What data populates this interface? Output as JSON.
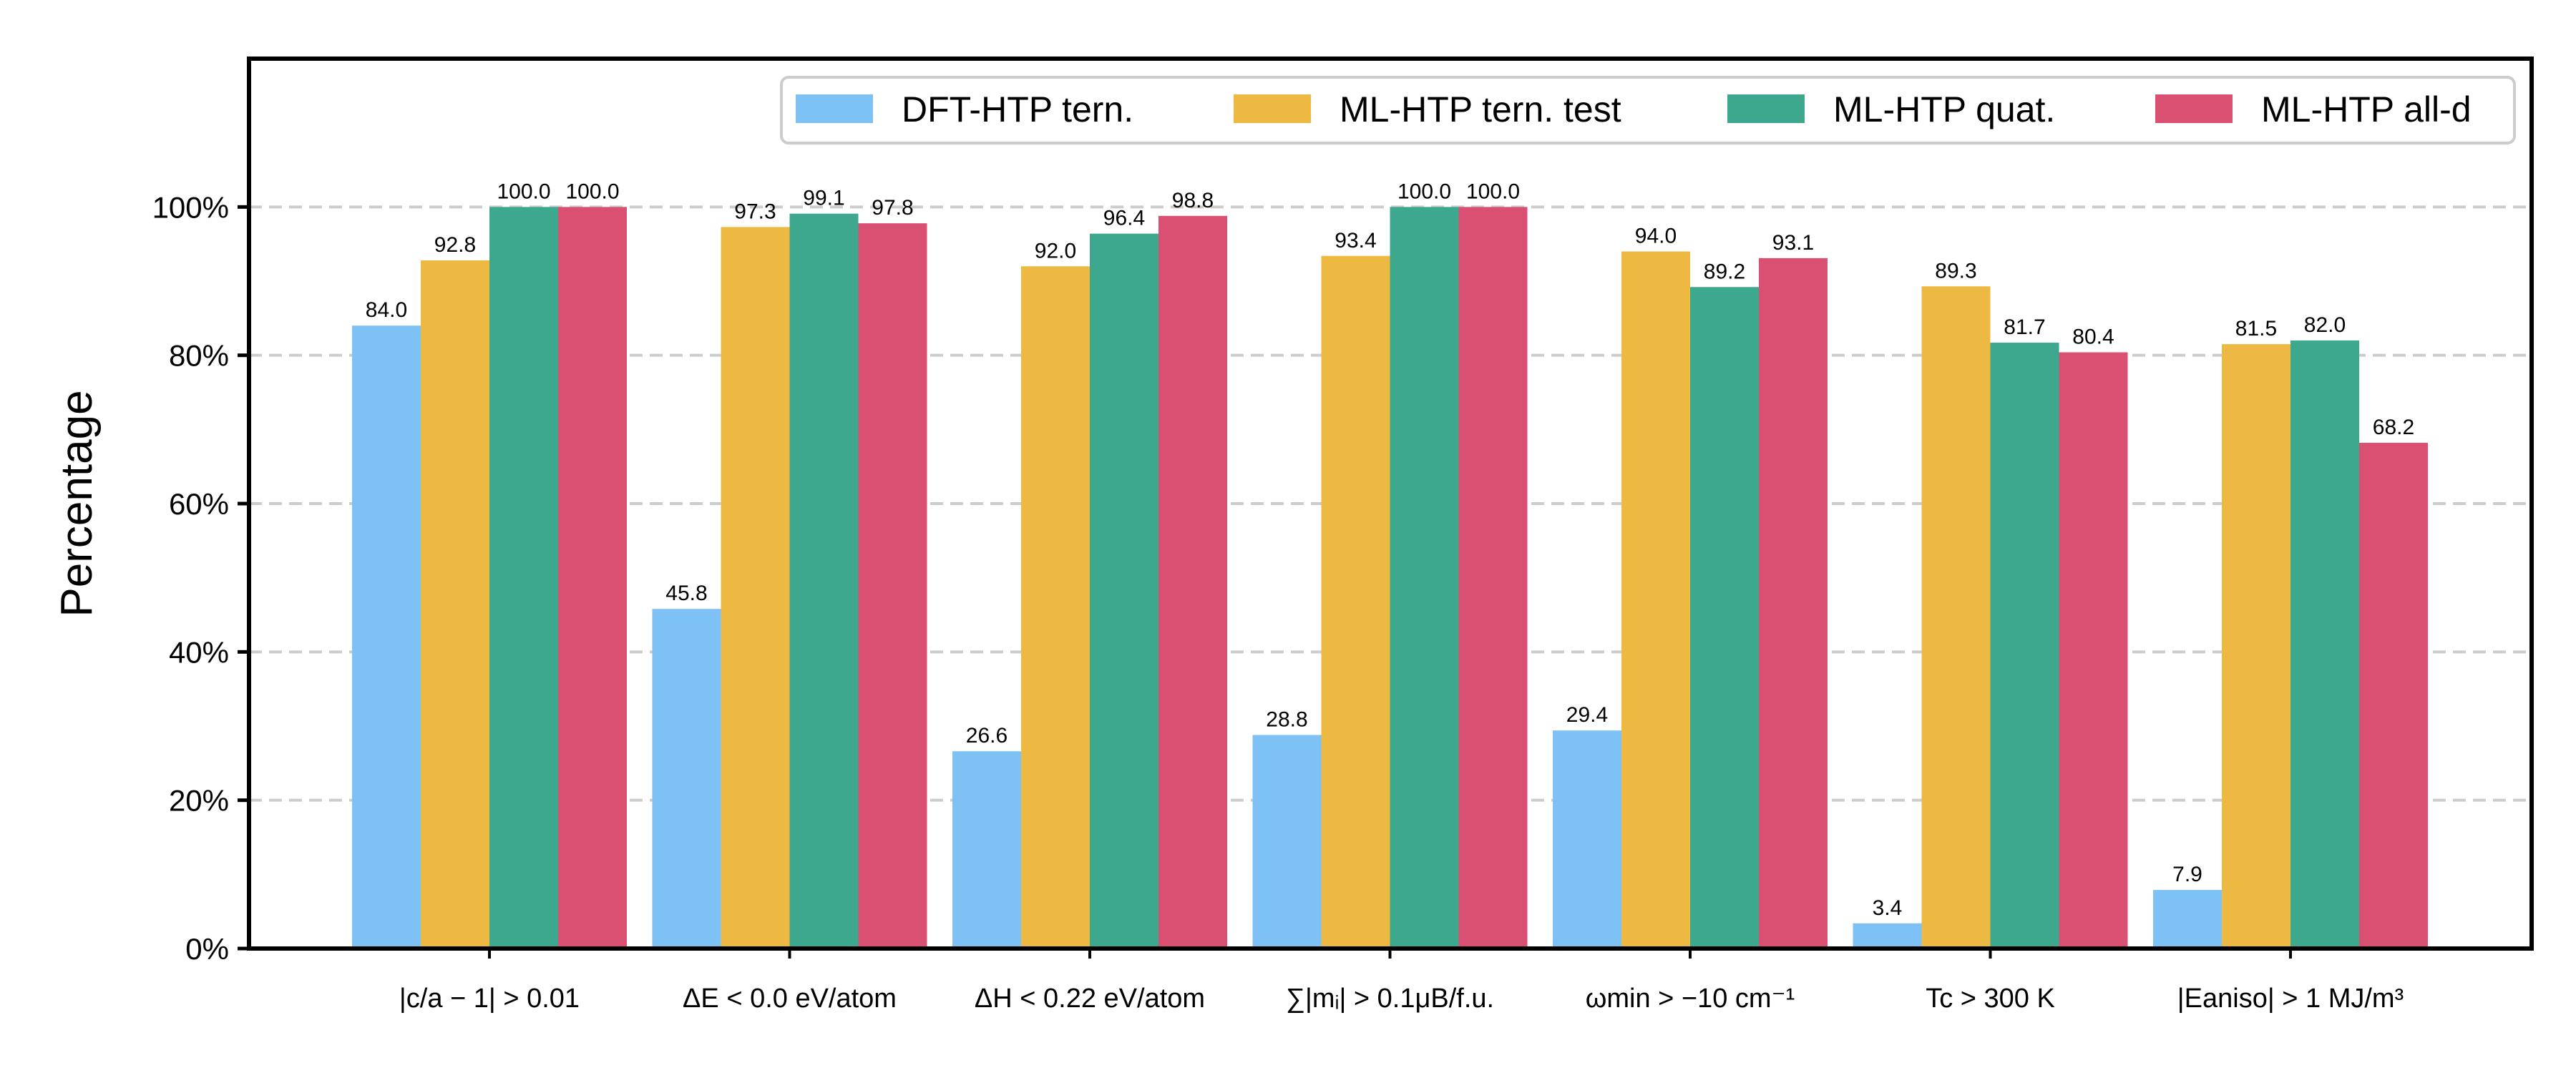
{
  "chart_data": {
    "type": "bar",
    "ylabel": "Percentage",
    "ylim": [
      0,
      120
    ],
    "yticks": [
      0,
      20,
      40,
      60,
      80,
      100
    ],
    "yticks_labels": [
      "0%",
      "20%",
      "40%",
      "60%",
      "80%",
      "100%"
    ],
    "categories": [
      "|c/a − 1| > 0.01",
      "ΔE < 0.0 eV/atom",
      "ΔH < 0.22 eV/atom",
      "∑|mᵢ| > 0.1μB/f.u.",
      "ωmin > −10 cm⁻¹",
      "Tc > 300 K",
      "|Eaniso| > 1 MJ/m³"
    ],
    "series": [
      {
        "name": "DFT-HTP tern.",
        "color": "#7DC1F5",
        "values": [
          84.0,
          45.8,
          26.6,
          28.8,
          29.4,
          3.4,
          7.9
        ]
      },
      {
        "name": "ML-HTP tern. test",
        "color": "#EEB942",
        "values": [
          92.8,
          97.3,
          92.0,
          93.4,
          94.0,
          89.3,
          81.5
        ]
      },
      {
        "name": "ML-HTP quat.",
        "color": "#3EA88E",
        "values": [
          100.0,
          99.1,
          96.4,
          100.0,
          89.2,
          81.7,
          82.0
        ]
      },
      {
        "name": "ML-HTP all-d",
        "color": "#D95072",
        "values": [
          100.0,
          97.8,
          98.8,
          100.0,
          93.1,
          80.4,
          68.2
        ]
      }
    ],
    "legend_position": "top-right",
    "grid": true
  }
}
